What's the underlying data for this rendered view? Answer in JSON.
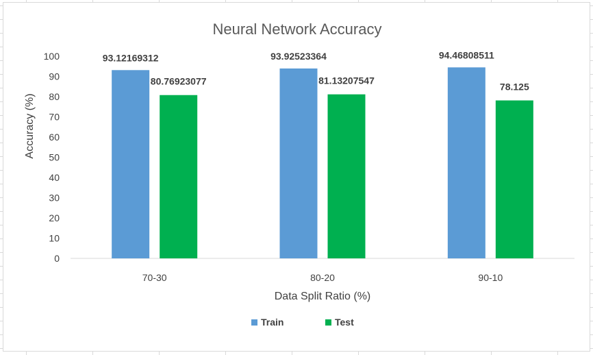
{
  "chart_data": {
    "type": "bar",
    "title": "Neural Network Accuracy",
    "xlabel": "Data Split Ratio (%)",
    "ylabel": "Accuracy (%)",
    "categories": [
      "70-30",
      "80-20",
      "90-10"
    ],
    "series": [
      {
        "name": "Train",
        "color": "#5b9bd5",
        "values": [
          93.12169312,
          93.92523364,
          94.46808511
        ],
        "labels": [
          "93.12169312",
          "93.92523364",
          "94.46808511"
        ]
      },
      {
        "name": "Test",
        "color": "#00b050",
        "values": [
          80.76923077,
          81.13207547,
          78.125
        ],
        "labels": [
          "80.76923077",
          "81.13207547",
          "78.125"
        ]
      }
    ],
    "ylim": [
      0,
      100
    ],
    "yticks": [
      0,
      10,
      20,
      30,
      40,
      50,
      60,
      70,
      80,
      90,
      100
    ],
    "grid": false,
    "legend": "bottom-center"
  }
}
